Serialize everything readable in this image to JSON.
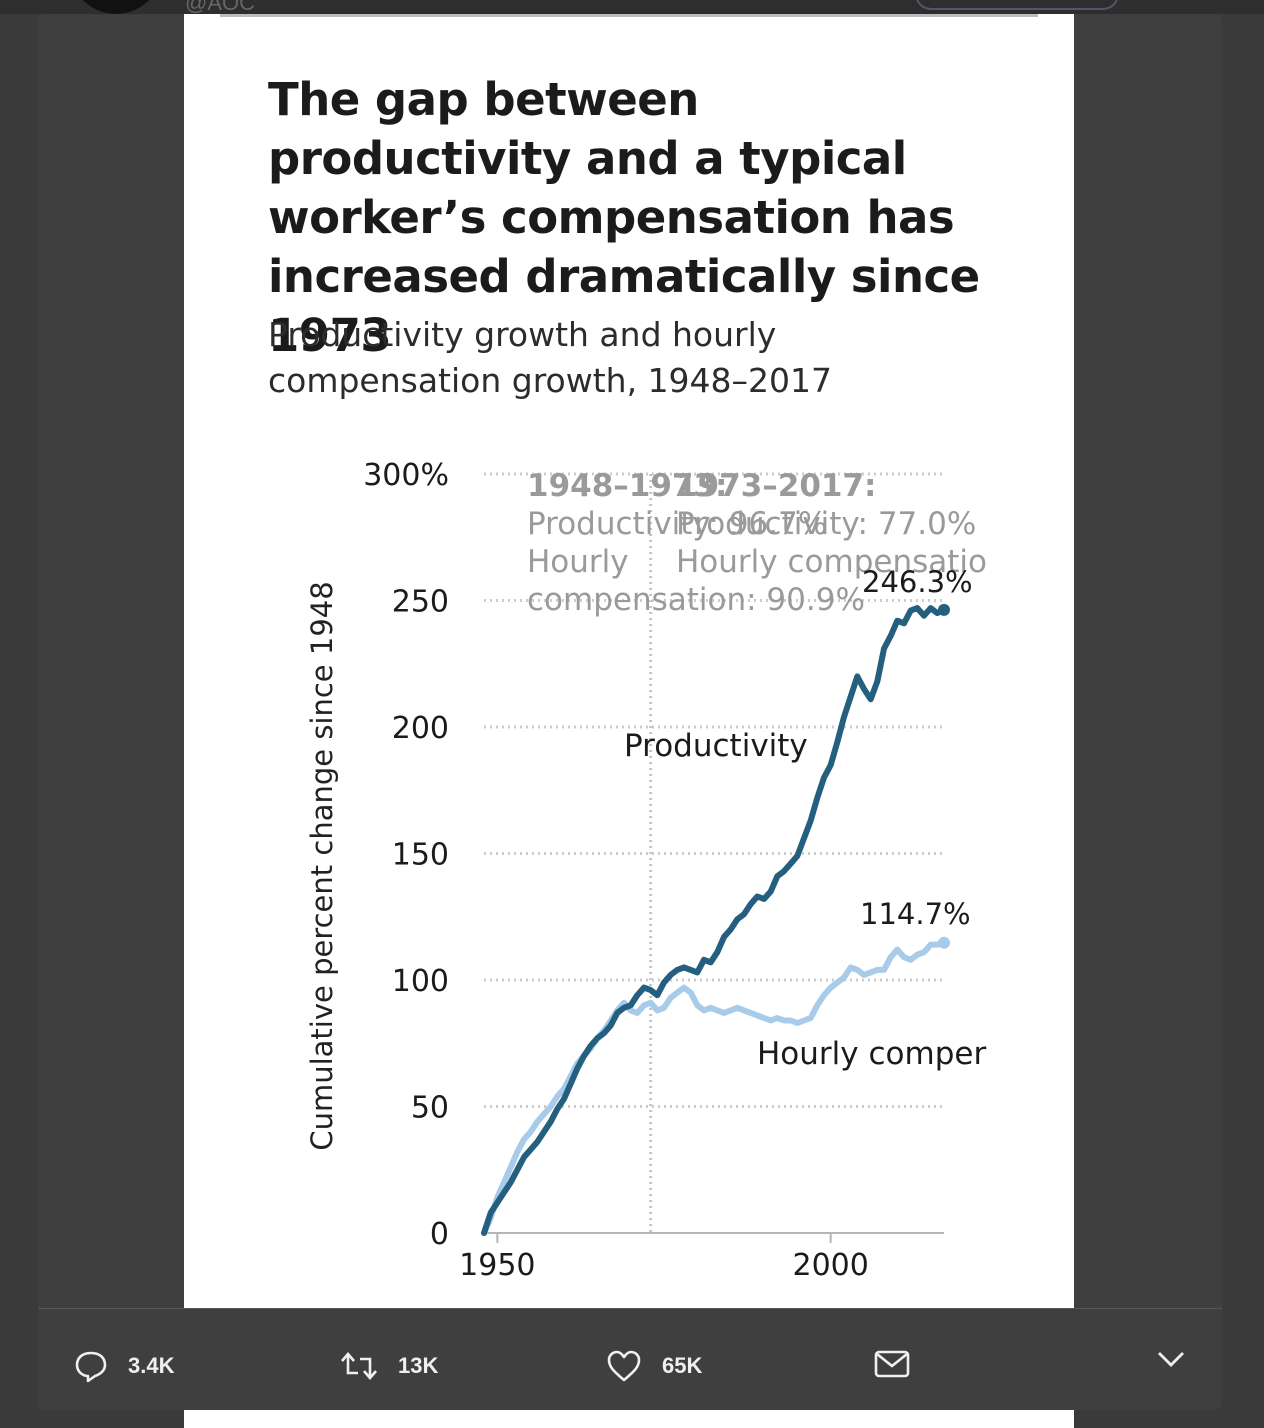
{
  "header": {
    "handle": "@AOC"
  },
  "chart_data": {
    "type": "line",
    "title": "The gap between productivity and a typical worker’s compensation has increased dramatically since 1973",
    "subtitle": "Productivity growth and hourly compensation growth, 1948–2017",
    "ylabel": "Cumulative percent change since 1948",
    "xlabel": "",
    "ylim": [
      0,
      300
    ],
    "xlim": [
      1948,
      2017
    ],
    "y_ticks": [
      0,
      50,
      100,
      150,
      200,
      250,
      300
    ],
    "y_tick_labels": [
      "0",
      "50",
      "100",
      "150",
      "200",
      "250",
      "300%"
    ],
    "x_ticks": [
      1950,
      2000
    ],
    "x_tick_labels": [
      "1950",
      "2000"
    ],
    "grid": "dotted horizontal",
    "reference_year": 1973,
    "series": [
      {
        "name": "Productivity",
        "color": "#255f80",
        "points": [
          [
            1948,
            0
          ],
          [
            1949,
            8
          ],
          [
            1950,
            12
          ],
          [
            1951,
            16
          ],
          [
            1952,
            20
          ],
          [
            1953,
            25
          ],
          [
            1954,
            30
          ],
          [
            1955,
            33
          ],
          [
            1956,
            36
          ],
          [
            1957,
            40
          ],
          [
            1958,
            44
          ],
          [
            1959,
            49
          ],
          [
            1960,
            53
          ],
          [
            1961,
            59
          ],
          [
            1962,
            65
          ],
          [
            1963,
            70
          ],
          [
            1964,
            74
          ],
          [
            1965,
            77
          ],
          [
            1966,
            79
          ],
          [
            1967,
            82
          ],
          [
            1968,
            87
          ],
          [
            1969,
            89
          ],
          [
            1970,
            90
          ],
          [
            1971,
            94
          ],
          [
            1972,
            97
          ],
          [
            1973,
            96
          ],
          [
            1974,
            94
          ],
          [
            1975,
            99
          ],
          [
            1976,
            102
          ],
          [
            1977,
            104
          ],
          [
            1978,
            105
          ],
          [
            1979,
            104
          ],
          [
            1980,
            103
          ],
          [
            1981,
            108
          ],
          [
            1982,
            107
          ],
          [
            1983,
            111
          ],
          [
            1984,
            117
          ],
          [
            1985,
            120
          ],
          [
            1986,
            124
          ],
          [
            1987,
            126
          ],
          [
            1988,
            130
          ],
          [
            1989,
            133
          ],
          [
            1990,
            132
          ],
          [
            1991,
            135
          ],
          [
            1992,
            141
          ],
          [
            1993,
            143
          ],
          [
            1994,
            146
          ],
          [
            1995,
            149
          ],
          [
            1996,
            156
          ],
          [
            1997,
            163
          ],
          [
            1998,
            172
          ],
          [
            1999,
            180
          ],
          [
            2000,
            185
          ],
          [
            2001,
            194
          ],
          [
            2002,
            204
          ],
          [
            2003,
            212
          ],
          [
            2004,
            220
          ],
          [
            2005,
            215
          ],
          [
            2006,
            211
          ],
          [
            2007,
            218
          ],
          [
            2008,
            231
          ],
          [
            2009,
            236
          ],
          [
            2010,
            242
          ],
          [
            2011,
            241
          ],
          [
            2012,
            246
          ],
          [
            2013,
            247
          ],
          [
            2014,
            244
          ],
          [
            2015,
            247
          ],
          [
            2016,
            245
          ],
          [
            2017,
            246.3
          ]
        ],
        "end_label": "246.3%"
      },
      {
        "name": "Hourly compensation",
        "label_shown": "Hourly comper",
        "color": "#a8cbea",
        "points": [
          [
            1948,
            0
          ],
          [
            1949,
            6
          ],
          [
            1950,
            14
          ],
          [
            1951,
            20
          ],
          [
            1952,
            26
          ],
          [
            1953,
            32
          ],
          [
            1954,
            37
          ],
          [
            1955,
            40
          ],
          [
            1956,
            44
          ],
          [
            1957,
            47
          ],
          [
            1958,
            50
          ],
          [
            1959,
            54
          ],
          [
            1960,
            57
          ],
          [
            1961,
            62
          ],
          [
            1962,
            67
          ],
          [
            1963,
            70
          ],
          [
            1964,
            73
          ],
          [
            1965,
            77
          ],
          [
            1966,
            80
          ],
          [
            1967,
            84
          ],
          [
            1968,
            88
          ],
          [
            1969,
            91
          ],
          [
            1970,
            88
          ],
          [
            1971,
            87
          ],
          [
            1972,
            90
          ],
          [
            1973,
            91
          ],
          [
            1974,
            88
          ],
          [
            1975,
            89
          ],
          [
            1976,
            93
          ],
          [
            1977,
            95
          ],
          [
            1978,
            97
          ],
          [
            1979,
            95
          ],
          [
            1980,
            90
          ],
          [
            1981,
            88
          ],
          [
            1982,
            89
          ],
          [
            1983,
            88
          ],
          [
            1984,
            87
          ],
          [
            1985,
            88
          ],
          [
            1986,
            89
          ],
          [
            1987,
            88
          ],
          [
            1988,
            87
          ],
          [
            1989,
            86
          ],
          [
            1990,
            85
          ],
          [
            1991,
            84
          ],
          [
            1992,
            85
          ],
          [
            1993,
            84
          ],
          [
            1994,
            84
          ],
          [
            1995,
            83
          ],
          [
            1996,
            84
          ],
          [
            1997,
            85
          ],
          [
            1998,
            90
          ],
          [
            1999,
            94
          ],
          [
            2000,
            97
          ],
          [
            2001,
            99
          ],
          [
            2002,
            101
          ],
          [
            2003,
            105
          ],
          [
            2004,
            104
          ],
          [
            2005,
            102
          ],
          [
            2006,
            103
          ],
          [
            2007,
            104
          ],
          [
            2008,
            104
          ],
          [
            2009,
            109
          ],
          [
            2010,
            112
          ],
          [
            2011,
            109
          ],
          [
            2012,
            108
          ],
          [
            2013,
            110
          ],
          [
            2014,
            111
          ],
          [
            2015,
            114
          ],
          [
            2016,
            114
          ],
          [
            2017,
            114.7
          ]
        ],
        "end_label": "114.7%"
      }
    ],
    "annotations": {
      "period1_title": "1948–1973:",
      "period1_line1": "Productivity: 96.7%",
      "period1_line2": "Hourly",
      "period1_line3": "compensation: 90.9%",
      "period2_title": "1973–2017:",
      "period2_line1": "Productivity: 77.0%",
      "period2_line2": "Hourly compensatio"
    }
  },
  "colors": {
    "productivity": "#255f80",
    "compensation": "#a8cbea",
    "grid": "#cccccc",
    "annotation": "#9a9a9a"
  },
  "actions": {
    "reply_count": "3.4K",
    "retweet_count": "13K",
    "like_count": "65K"
  }
}
